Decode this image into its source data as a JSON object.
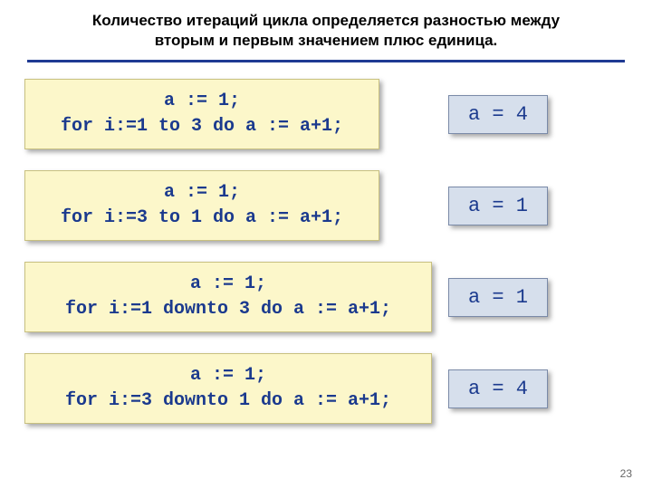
{
  "title": {
    "line1": "Количество итераций цикла определяется разностью между",
    "line2": "вторым и первым значением плюс единица."
  },
  "divider_color": "#1f3a93",
  "codebox": {
    "bg": "#fcf7ca",
    "text_color": "#1b3a8e",
    "border_color": "#c8c080",
    "font": "Courier New",
    "font_size_pt": 15,
    "font_weight": "bold"
  },
  "resultbox": {
    "bg": "#d6dfec",
    "text_color": "#1b3a8e",
    "border_color": "#7a8aa8",
    "font": "Courier New",
    "font_size_pt": 16
  },
  "examples": [
    {
      "code": "a := 1;\nfor i:=1 to 3 do a := a+1;",
      "result": "a = 4",
      "width": "narrow",
      "shift": true
    },
    {
      "code": "a := 1;\nfor i:=3 to 1 do a := a+1;",
      "result": "a = 1",
      "width": "narrow",
      "shift": true
    },
    {
      "code": "a := 1;\nfor i:=1 downto 3 do a := a+1;",
      "result": "a = 1",
      "width": "wide",
      "shift": false
    },
    {
      "code": "a := 1;\nfor i:=3 downto 1 do a := a+1;",
      "result": "a = 4",
      "width": "wide",
      "shift": false
    }
  ],
  "page_number": "23"
}
